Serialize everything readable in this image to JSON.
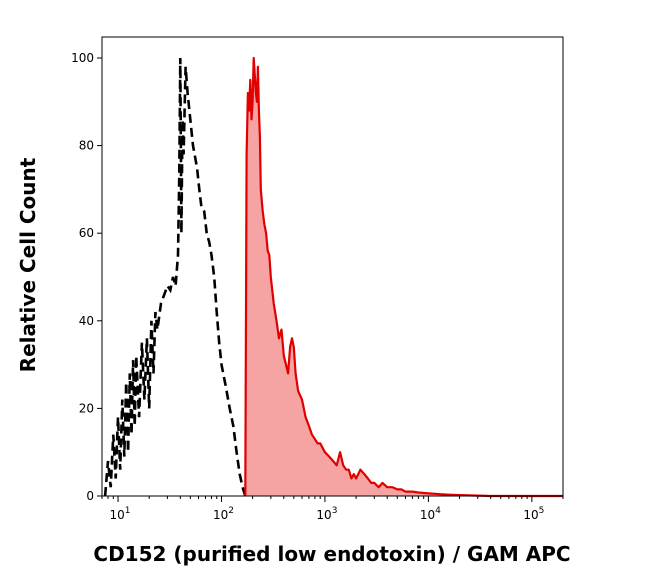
{
  "chart_data": {
    "type": "area",
    "xlabel": "CD152 (purified low endotoxin) / GAM APC",
    "ylabel": "Relative Cell Count",
    "x_scale": "log",
    "xlim": [
      7,
      200000
    ],
    "ylim": [
      0,
      100
    ],
    "y_ticks": [
      "0",
      "20",
      "40",
      "60",
      "80",
      "100"
    ],
    "x_ticks": [
      {
        "value": 10,
        "base": "10",
        "exp": "1"
      },
      {
        "value": 100,
        "base": "10",
        "exp": "2"
      },
      {
        "value": 1000,
        "base": "10",
        "exp": "3"
      },
      {
        "value": 10000,
        "base": "10",
        "exp": "4"
      },
      {
        "value": 100000,
        "base": "10",
        "exp": "5"
      }
    ],
    "grid": false,
    "series": [
      {
        "style": "dashed-outline",
        "color": "#000000",
        "points": [
          [
            7.5,
            0
          ],
          [
            8,
            8
          ],
          [
            8.5,
            2
          ],
          [
            9,
            14
          ],
          [
            9.5,
            4
          ],
          [
            10,
            18
          ],
          [
            10.5,
            6
          ],
          [
            11,
            22
          ],
          [
            11.5,
            9
          ],
          [
            12,
            26
          ],
          [
            12.5,
            10
          ],
          [
            13,
            28
          ],
          [
            13.5,
            14
          ],
          [
            14,
            31
          ],
          [
            14.5,
            16
          ],
          [
            15,
            32
          ],
          [
            16,
            18
          ],
          [
            17,
            35
          ],
          [
            18,
            22
          ],
          [
            19,
            36
          ],
          [
            20,
            20
          ],
          [
            21,
            40
          ],
          [
            22,
            28
          ],
          [
            23,
            42
          ],
          [
            24,
            38
          ],
          [
            26,
            44
          ],
          [
            28,
            46
          ],
          [
            30,
            48
          ],
          [
            32,
            47
          ],
          [
            34,
            50
          ],
          [
            36,
            48
          ],
          [
            38,
            55
          ],
          [
            39,
            72
          ],
          [
            40,
            100
          ],
          [
            41,
            60
          ],
          [
            42,
            86
          ],
          [
            43,
            78
          ],
          [
            45,
            98
          ],
          [
            47,
            92
          ],
          [
            49,
            88
          ],
          [
            51,
            84
          ],
          [
            53,
            80
          ],
          [
            55,
            78
          ],
          [
            58,
            75
          ],
          [
            61,
            70
          ],
          [
            64,
            66
          ],
          [
            68,
            65
          ],
          [
            72,
            60
          ],
          [
            76,
            58
          ],
          [
            80,
            55
          ],
          [
            85,
            50
          ],
          [
            90,
            42
          ],
          [
            95,
            35
          ],
          [
            100,
            30
          ],
          [
            110,
            25
          ],
          [
            120,
            20
          ],
          [
            130,
            16
          ],
          [
            140,
            10
          ],
          [
            150,
            5
          ],
          [
            160,
            2
          ],
          [
            170,
            0
          ]
        ]
      },
      {
        "style": "filled",
        "color": "#e00000",
        "fill": "#f6a3a3",
        "points": [
          [
            170,
            0
          ],
          [
            175,
            78
          ],
          [
            180,
            92
          ],
          [
            185,
            88
          ],
          [
            190,
            95
          ],
          [
            195,
            86
          ],
          [
            200,
            90
          ],
          [
            205,
            100
          ],
          [
            210,
            96
          ],
          [
            215,
            92
          ],
          [
            220,
            90
          ],
          [
            225,
            98
          ],
          [
            230,
            88
          ],
          [
            235,
            82
          ],
          [
            240,
            70
          ],
          [
            250,
            65
          ],
          [
            260,
            62
          ],
          [
            270,
            60
          ],
          [
            280,
            56
          ],
          [
            290,
            55
          ],
          [
            300,
            50
          ],
          [
            320,
            44
          ],
          [
            340,
            40
          ],
          [
            360,
            36
          ],
          [
            380,
            38
          ],
          [
            400,
            32
          ],
          [
            420,
            30
          ],
          [
            440,
            28
          ],
          [
            460,
            34
          ],
          [
            480,
            36
          ],
          [
            500,
            34
          ],
          [
            520,
            28
          ],
          [
            550,
            24
          ],
          [
            600,
            22
          ],
          [
            650,
            18
          ],
          [
            700,
            16
          ],
          [
            750,
            14
          ],
          [
            800,
            13
          ],
          [
            850,
            12
          ],
          [
            900,
            12
          ],
          [
            950,
            11
          ],
          [
            1000,
            10
          ],
          [
            1100,
            9
          ],
          [
            1200,
            8
          ],
          [
            1300,
            7
          ],
          [
            1400,
            10
          ],
          [
            1500,
            7
          ],
          [
            1600,
            6
          ],
          [
            1700,
            6
          ],
          [
            1800,
            4
          ],
          [
            1900,
            5
          ],
          [
            2000,
            4
          ],
          [
            2200,
            6
          ],
          [
            2400,
            5
          ],
          [
            2600,
            4
          ],
          [
            2800,
            3
          ],
          [
            3000,
            3
          ],
          [
            3300,
            2
          ],
          [
            3600,
            3
          ],
          [
            4000,
            2
          ],
          [
            4500,
            2
          ],
          [
            5000,
            1.5
          ],
          [
            5500,
            1.5
          ],
          [
            6000,
            1
          ],
          [
            7000,
            1
          ],
          [
            8000,
            0.8
          ],
          [
            10000,
            0.6
          ],
          [
            13000,
            0.4
          ],
          [
            16000,
            0.3
          ],
          [
            20000,
            0.2
          ],
          [
            30000,
            0.1
          ],
          [
            40000,
            0
          ],
          [
            200000,
            0
          ]
        ]
      }
    ]
  }
}
